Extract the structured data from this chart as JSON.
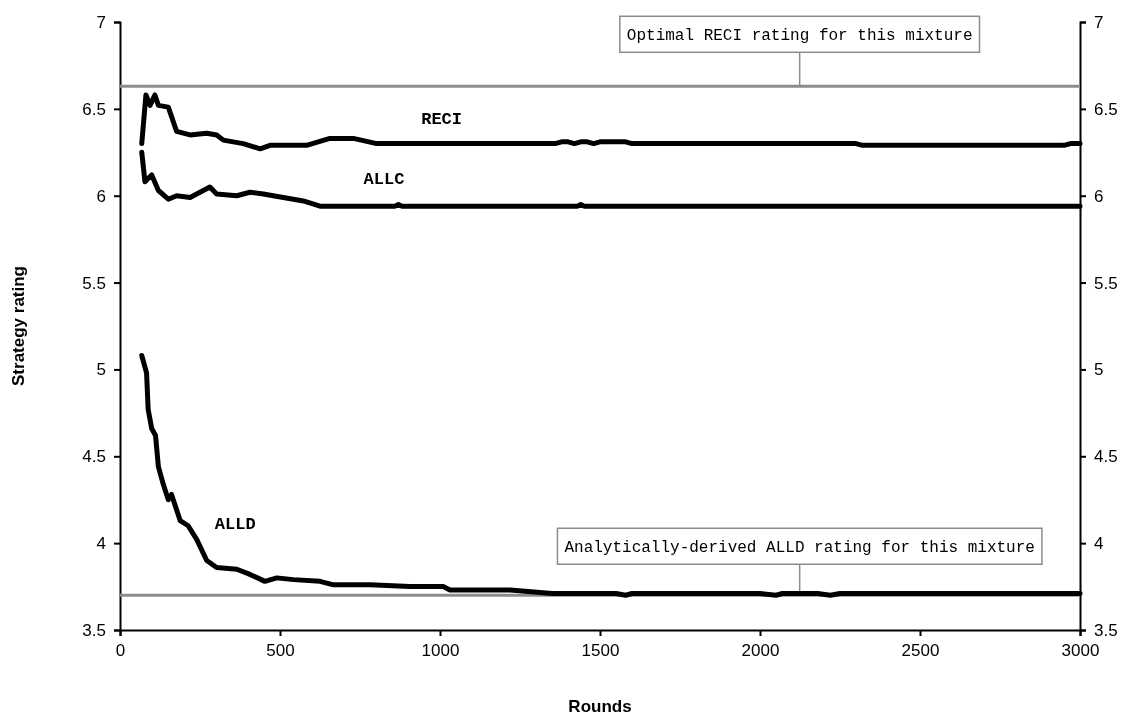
{
  "chart_data": {
    "type": "line",
    "xlabel": "Rounds",
    "ylabel": "Strategy rating",
    "xlim": [
      0,
      3000
    ],
    "xticks": [
      0,
      500,
      1000,
      1500,
      2000,
      2500,
      3000
    ],
    "ylim": [
      3.5,
      7
    ],
    "yticks": [
      3.5,
      4,
      4.5,
      5,
      5.5,
      6,
      6.5,
      7
    ],
    "y2lim": [
      3.5,
      7
    ],
    "y2ticks": [
      3.5,
      4,
      4.5,
      5,
      5.5,
      6,
      6.5,
      7
    ],
    "grid": false,
    "legend": false,
    "marker": "none",
    "line_style": "solid",
    "series": [
      {
        "name": "RECI",
        "color": "#000000",
        "x": [
          68,
          81,
          94,
          109,
          120,
          151,
          177,
          219,
          271,
          302,
          323,
          385,
          438,
          469,
          531,
          583,
          656,
          729,
          802,
          1360,
          1380,
          1400,
          1420,
          1440,
          1460,
          1480,
          1500,
          1580,
          1600,
          2300,
          2320,
          2950,
          2970,
          3000
        ],
        "values": [
          6.3,
          6.58,
          6.52,
          6.58,
          6.52,
          6.51,
          6.37,
          6.35,
          6.36,
          6.35,
          6.32,
          6.3,
          6.27,
          6.29,
          6.29,
          6.29,
          6.33,
          6.33,
          6.3,
          6.3,
          6.31,
          6.31,
          6.3,
          6.31,
          6.31,
          6.3,
          6.31,
          6.31,
          6.3,
          6.3,
          6.29,
          6.29,
          6.3,
          6.3
        ]
      },
      {
        "name": "ALLC",
        "color": "#000000",
        "x": [
          68,
          78,
          99,
          120,
          151,
          177,
          219,
          250,
          281,
          302,
          365,
          406,
          448,
          510,
          573,
          625,
          656,
          860,
          870,
          880,
          1430,
          1440,
          1450,
          3000
        ],
        "values": [
          6.25,
          6.08,
          6.12,
          6.03,
          5.98,
          6.0,
          5.99,
          6.02,
          6.05,
          6.01,
          6.0,
          6.02,
          6.01,
          5.99,
          5.97,
          5.94,
          5.94,
          5.94,
          5.95,
          5.94,
          5.94,
          5.95,
          5.94,
          5.94
        ]
      },
      {
        "name": "ALLD",
        "color": "#000000",
        "x": [
          68,
          83,
          88,
          99,
          111,
          120,
          135,
          151,
          161,
          188,
          213,
          240,
          271,
          302,
          365,
          406,
          453,
          490,
          542,
          625,
          667,
          781,
          906,
          1010,
          1031,
          1219,
          1350,
          1550,
          1580,
          1600,
          2000,
          2050,
          2070,
          2180,
          2220,
          2250,
          3000
        ],
        "values": [
          5.08,
          4.98,
          4.77,
          4.66,
          4.62,
          4.44,
          4.34,
          4.25,
          4.28,
          4.13,
          4.1,
          4.02,
          3.9,
          3.86,
          3.85,
          3.82,
          3.78,
          3.8,
          3.79,
          3.78,
          3.76,
          3.76,
          3.75,
          3.75,
          3.73,
          3.73,
          3.71,
          3.71,
          3.7,
          3.71,
          3.71,
          3.7,
          3.71,
          3.71,
          3.7,
          3.71,
          3.71
        ]
      }
    ],
    "ref_lines": [
      {
        "axis": "y",
        "value": 6.63,
        "label": "Optimal RECI rating for this mixture",
        "color": "#8c8c8c"
      },
      {
        "axis": "y",
        "value": 3.7,
        "label": "Analytically-derived ALLD rating for this mixture",
        "color": "#8c8c8c"
      }
    ]
  }
}
